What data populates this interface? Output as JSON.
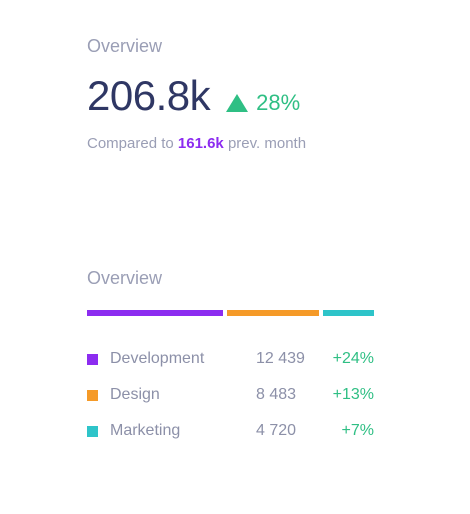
{
  "overview_top": {
    "title": "Overview",
    "value": "206.8k",
    "delta": "28%",
    "compare_prefix": "Compared to",
    "compare_value": "161.6k",
    "compare_suffix": "prev. month"
  },
  "overview_bottom": {
    "title": "Overview",
    "items": [
      {
        "label": "Development",
        "count": "12 439",
        "delta": "+24%",
        "color": "#8c2cf0",
        "share": 0.486
      },
      {
        "label": "Design",
        "count": "8 483",
        "delta": "+13%",
        "color": "#f59a28",
        "share": 0.331
      },
      {
        "label": "Marketing",
        "count": "4 720",
        "delta": "+7%",
        "color": "#2ec4c9",
        "share": 0.184
      }
    ]
  }
}
